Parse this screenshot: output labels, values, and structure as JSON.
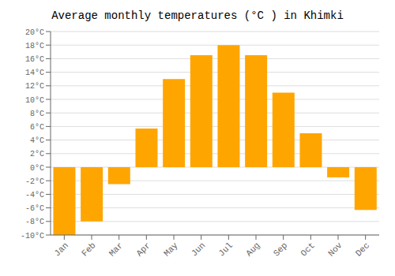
{
  "chart_data": {
    "type": "bar",
    "title": "Average monthly temperatures (°C ) in Khimki",
    "categories": [
      "Jan",
      "Feb",
      "Mar",
      "Apr",
      "May",
      "Jun",
      "Jul",
      "Aug",
      "Sep",
      "Oct",
      "Nov",
      "Dec"
    ],
    "values": [
      -10,
      -8,
      -2.5,
      5.7,
      13,
      16.5,
      18,
      16.5,
      11,
      5,
      -1.5,
      -6.3
    ],
    "color": "#FFA500",
    "ylim": [
      -10,
      20
    ],
    "yticks": [
      {
        "value": -10,
        "label": "-10°C"
      },
      {
        "value": -8,
        "label": "-8°C"
      },
      {
        "value": -6,
        "label": "-6°C"
      },
      {
        "value": -4,
        "label": "-4°C"
      },
      {
        "value": -2,
        "label": "-2°C"
      },
      {
        "value": 0,
        "label": "0°C"
      },
      {
        "value": 2,
        "label": "2°C"
      },
      {
        "value": 4,
        "label": "4°C"
      },
      {
        "value": 6,
        "label": "6°C"
      },
      {
        "value": 8,
        "label": "8°C"
      },
      {
        "value": 10,
        "label": "10°C"
      },
      {
        "value": 12,
        "label": "12°C"
      },
      {
        "value": 14,
        "label": "14°C"
      },
      {
        "value": 16,
        "label": "16°C"
      },
      {
        "value": 18,
        "label": "18°C"
      },
      {
        "value": 20,
        "label": "20°C"
      }
    ],
    "grid": true
  }
}
